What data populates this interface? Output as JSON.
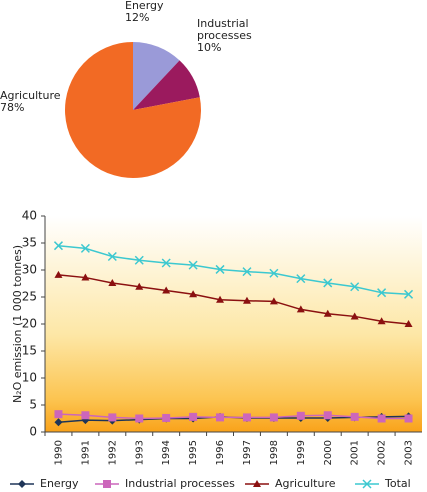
{
  "chart_data": [
    {
      "type": "pie",
      "categories": [
        "Energy",
        "Industrial processes",
        "Agriculture"
      ],
      "values": [
        12,
        10,
        78
      ],
      "value_labels": [
        "12%",
        "10%",
        "78%"
      ],
      "colors": [
        "#9a9ad8",
        "#9b1a5e",
        "#f26a24"
      ]
    },
    {
      "type": "line",
      "y_label": "N₂O emission (1 000 tonnes)",
      "categories": [
        "1990",
        "1991",
        "1992",
        "1993",
        "1994",
        "1995",
        "1996",
        "1997",
        "1998",
        "1999",
        "2000",
        "2001",
        "2002",
        "2003"
      ],
      "series": [
        {
          "name": "Energy",
          "color": "#1f3558",
          "marker": "diamond",
          "values": [
            1.8,
            2.2,
            2.1,
            2.3,
            2.5,
            2.5,
            2.8,
            2.6,
            2.6,
            2.6,
            2.6,
            2.7,
            2.8,
            2.9
          ]
        },
        {
          "name": "Industrial processes",
          "color": "#cc66bb",
          "marker": "square",
          "values": [
            3.3,
            3.1,
            2.7,
            2.5,
            2.6,
            2.8,
            2.7,
            2.7,
            2.7,
            3.0,
            3.1,
            2.8,
            2.5,
            2.5
          ]
        },
        {
          "name": "Agriculture",
          "color": "#8b1010",
          "marker": "triangle",
          "values": [
            29.1,
            28.6,
            27.6,
            26.9,
            26.2,
            25.5,
            24.5,
            24.3,
            24.2,
            22.7,
            21.9,
            21.4,
            20.5,
            20.0
          ]
        },
        {
          "name": "Total",
          "color": "#3cc8d0",
          "marker": "x",
          "values": [
            34.5,
            34.0,
            32.5,
            31.8,
            31.3,
            30.9,
            30.1,
            29.7,
            29.4,
            28.4,
            27.6,
            26.9,
            25.8,
            25.5
          ]
        }
      ],
      "ylim": [
        0,
        40
      ],
      "yticks": [
        0,
        5,
        10,
        15,
        20,
        25,
        30,
        35,
        40
      ],
      "grid": false
    }
  ]
}
